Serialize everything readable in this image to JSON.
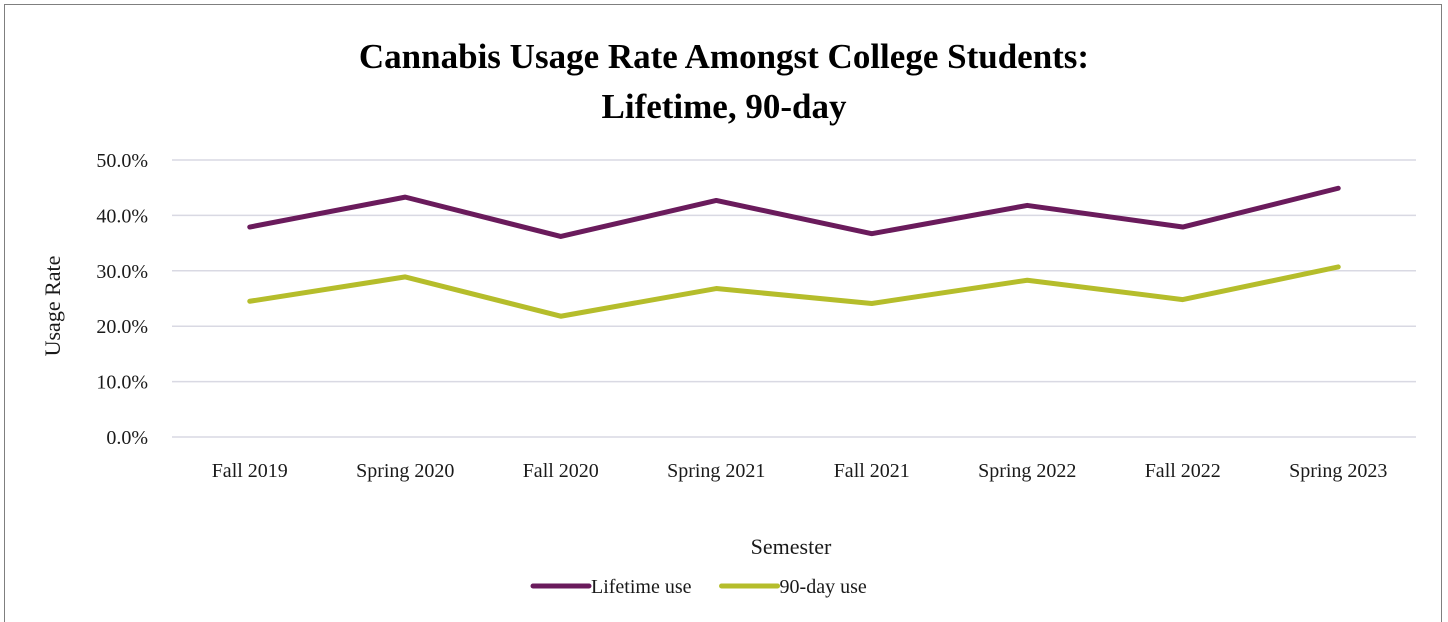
{
  "chart_data": {
    "type": "line",
    "title_lines": [
      "Cannabis Usage Rate Amongst College Students:",
      "Lifetime, 90-day"
    ],
    "xlabel": "Semester",
    "ylabel": "Usage Rate",
    "categories": [
      "Fall 2019",
      "Spring 2020",
      "Fall 2020",
      "Spring 2021",
      "Fall 2021",
      "Spring 2022",
      "Fall 2022",
      "Spring 2023"
    ],
    "ylim": [
      0,
      50
    ],
    "yticks": [
      0,
      10,
      20,
      30,
      40,
      50
    ],
    "ytick_labels": [
      "0.0%",
      "10.0%",
      "20.0%",
      "30.0%",
      "40.0%",
      "50.0%"
    ],
    "grid": true,
    "legend_position": "bottom",
    "series": [
      {
        "name": "Lifetime use",
        "color": "#6a1b5c",
        "values": [
          37.9,
          43.3,
          36.2,
          42.7,
          36.7,
          41.8,
          37.9,
          44.9
        ]
      },
      {
        "name": "90-day use",
        "color": "#b5bd2b",
        "values": [
          24.5,
          28.9,
          21.8,
          26.8,
          24.1,
          28.3,
          24.8,
          30.7
        ]
      }
    ]
  }
}
